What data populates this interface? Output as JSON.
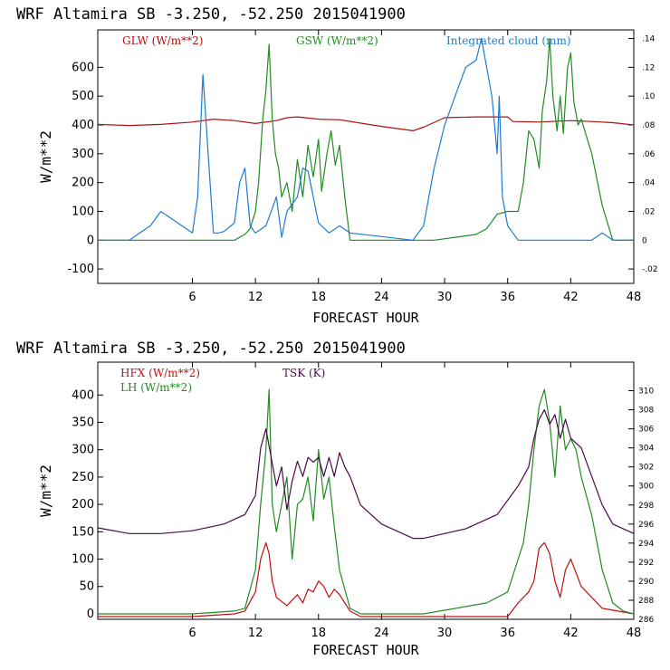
{
  "chart_data": [
    {
      "type": "line",
      "title": "WRF   Altamira   SB   -3.250, -52.250   2015041900",
      "xlabel": "FORECAST HOUR",
      "ylabel": "W/m**2",
      "xlim": [
        -3,
        48
      ],
      "ylim": [
        -150,
        730
      ],
      "xticks": [
        "6",
        "12",
        "18",
        "24",
        "30",
        "36",
        "42",
        "48"
      ],
      "yticks": [
        "-100",
        "0",
        "100",
        "200",
        "300",
        "400",
        "500",
        "600"
      ],
      "y2lim": [
        -0.03,
        0.146
      ],
      "y2ticks": [
        "-.02",
        "0",
        ".02",
        ".04",
        ".06",
        ".08",
        ".10",
        ".12",
        ".14"
      ],
      "legend": [
        "GLW (W/m**2)",
        "GSW (W/m**2)",
        "Integrated cloud (mm)"
      ],
      "series": [
        {
          "name": "GLW (W/m**2)",
          "color": "#b01010",
          "axis": "left",
          "x": [
            -3,
            0,
            3,
            6,
            8,
            10,
            12,
            14,
            15,
            16,
            18,
            20,
            24,
            27,
            28,
            30,
            33,
            36,
            36.5,
            39,
            42,
            44,
            46,
            48
          ],
          "y": [
            402,
            398,
            402,
            410,
            420,
            415,
            405,
            415,
            425,
            428,
            420,
            418,
            395,
            380,
            392,
            425,
            428,
            428,
            412,
            410,
            415,
            412,
            408,
            400
          ]
        },
        {
          "name": "GSW (W/m**2)",
          "color": "#228b22",
          "axis": "left",
          "x": [
            -3,
            10,
            11,
            11.5,
            12,
            12.3,
            12.7,
            13,
            13.3,
            13.6,
            13.9,
            14.2,
            14.5,
            15,
            15.5,
            16,
            16.5,
            17,
            17.5,
            18,
            18.3,
            18.8,
            19.2,
            19.6,
            20,
            20.5,
            21,
            22,
            29,
            33,
            34,
            35,
            36,
            37,
            37.5,
            38,
            38.5,
            39,
            39.3,
            39.7,
            40,
            40.3,
            40.7,
            41,
            41.3,
            41.7,
            42,
            42.3,
            42.7,
            43,
            44,
            45,
            46,
            48
          ],
          "y": [
            0,
            0,
            20,
            40,
            100,
            200,
            420,
            520,
            680,
            420,
            300,
            250,
            150,
            200,
            100,
            280,
            150,
            330,
            220,
            350,
            170,
            300,
            380,
            260,
            330,
            150,
            0,
            0,
            0,
            20,
            40,
            90,
            100,
            100,
            200,
            380,
            350,
            250,
            450,
            550,
            700,
            500,
            380,
            500,
            370,
            600,
            650,
            480,
            400,
            420,
            300,
            120,
            0,
            0
          ]
        },
        {
          "name": "Integrated cloud (mm)",
          "color": "#1e7bd0",
          "axis": "right",
          "x": [
            -3,
            0,
            1,
            2,
            3,
            4,
            6,
            6.5,
            7,
            7.5,
            8,
            8.5,
            9,
            10,
            10.5,
            11,
            11.5,
            12,
            13,
            14,
            14.5,
            15,
            16,
            16.5,
            17,
            18,
            19,
            20,
            21,
            27,
            28,
            29,
            30,
            31,
            32,
            33,
            33.5,
            34,
            34.5,
            35,
            35.2,
            35.5,
            36,
            36.5,
            37,
            44,
            45,
            46,
            48
          ],
          "y": [
            0,
            0,
            0.005,
            0.01,
            0.02,
            0.015,
            0.005,
            0.03,
            0.115,
            0.06,
            0.005,
            0.005,
            0.006,
            0.012,
            0.04,
            0.05,
            0.01,
            0.005,
            0.01,
            0.03,
            0.002,
            0.02,
            0.03,
            0.05,
            0.048,
            0.012,
            0.005,
            0.01,
            0.005,
            0,
            0.01,
            0.05,
            0.08,
            0.1,
            0.12,
            0.125,
            0.14,
            0.12,
            0.1,
            0.06,
            0.1,
            0.03,
            0.01,
            0.005,
            0,
            0,
            0.005,
            0,
            0
          ]
        }
      ]
    },
    {
      "type": "line",
      "title": "WRF   Altamira   SB   -3.250, -52.250   2015041900",
      "xlabel": "FORECAST HOUR",
      "ylabel": "W/m**2",
      "xlim": [
        -3,
        48
      ],
      "ylim": [
        -10,
        460
      ],
      "xticks": [
        "6",
        "12",
        "18",
        "24",
        "30",
        "36",
        "42",
        "48"
      ],
      "yticks": [
        "0",
        "50",
        "100",
        "150",
        "200",
        "250",
        "300",
        "350",
        "400"
      ],
      "y2lim": [
        286,
        313
      ],
      "y2ticks": [
        "286",
        "288",
        "290",
        "292",
        "294",
        "296",
        "298",
        "300",
        "302",
        "304",
        "306",
        "308",
        "310"
      ],
      "legend": [
        "HFX (W/m**2)",
        "LH  (W/m**2)",
        "TSK (K)"
      ],
      "series": [
        {
          "name": "HFX (W/m**2)",
          "color": "#c01010",
          "axis": "left",
          "x": [
            -3,
            0,
            6,
            10,
            11,
            12,
            12.5,
            13,
            13.3,
            13.6,
            14,
            15,
            16,
            16.5,
            17,
            17.5,
            18,
            18.5,
            19,
            19.5,
            20,
            21,
            22,
            36,
            37,
            38,
            38.5,
            39,
            39.5,
            40,
            40.5,
            41,
            41.5,
            42,
            43,
            44,
            45,
            48
          ],
          "y": [
            -5,
            -5,
            -5,
            0,
            5,
            40,
            100,
            130,
            110,
            60,
            30,
            15,
            35,
            20,
            45,
            40,
            60,
            50,
            30,
            45,
            35,
            5,
            -5,
            -5,
            20,
            40,
            60,
            120,
            130,
            110,
            60,
            30,
            80,
            100,
            50,
            30,
            10,
            0
          ]
        },
        {
          "name": "LH  (W/m**2)",
          "color": "#228b22",
          "axis": "left",
          "x": [
            -3,
            0,
            6,
            10,
            11,
            12,
            12.5,
            12.8,
            13,
            13.3,
            13.6,
            14,
            14.5,
            15,
            15.5,
            16,
            16.5,
            17,
            17.5,
            18,
            18.5,
            19,
            19.5,
            20,
            21,
            22,
            24,
            28,
            34,
            36,
            37,
            37.5,
            38,
            38.5,
            39,
            39.5,
            40,
            40.5,
            41,
            41.5,
            42,
            42.5,
            43,
            44,
            45,
            46,
            47,
            48
          ],
          "y": [
            0,
            0,
            0,
            5,
            10,
            80,
            200,
            260,
            300,
            410,
            200,
            150,
            200,
            250,
            100,
            200,
            210,
            250,
            170,
            300,
            210,
            250,
            160,
            80,
            10,
            0,
            0,
            0,
            20,
            40,
            100,
            130,
            200,
            300,
            380,
            410,
            350,
            250,
            380,
            300,
            320,
            300,
            250,
            180,
            80,
            20,
            5,
            0
          ]
        },
        {
          "name": "TSK (K)",
          "color": "#4a0a4a",
          "axis": "right",
          "x": [
            -3,
            0,
            3,
            6,
            9,
            10,
            11,
            11.5,
            12,
            12.5,
            13,
            13.5,
            14,
            14.5,
            15,
            15.5,
            16,
            16.5,
            17,
            17.5,
            18,
            18.5,
            19,
            19.5,
            20,
            20.5,
            21,
            22,
            24,
            27,
            28,
            30,
            32,
            34,
            35,
            36,
            37,
            38,
            38.5,
            39,
            39.5,
            40,
            40.5,
            41,
            41.5,
            42,
            43,
            44,
            45,
            46,
            48
          ],
          "y": [
            295.6,
            295,
            295,
            295.3,
            296,
            296.5,
            297,
            298,
            299,
            304,
            306,
            303,
            300,
            302,
            297.5,
            300.5,
            302.6,
            301,
            303,
            302.5,
            303,
            301,
            303,
            301,
            303.5,
            302,
            301,
            298,
            296,
            294.5,
            294.5,
            295,
            295.5,
            296.5,
            297,
            298.5,
            300,
            302,
            305,
            307,
            308,
            306.5,
            307.5,
            305,
            307,
            305,
            304,
            301,
            298,
            296,
            295
          ]
        }
      ]
    }
  ]
}
